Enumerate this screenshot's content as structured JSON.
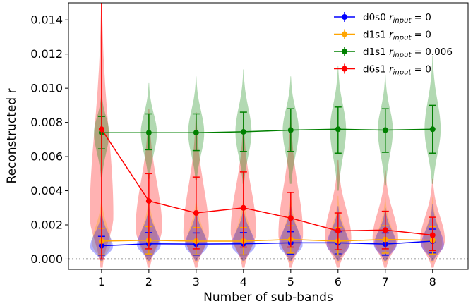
{
  "chart_data": {
    "type": "line",
    "xlabel": "Number of sub-bands",
    "ylabel": "Reconstructed r",
    "x": [
      1,
      2,
      3,
      4,
      5,
      6,
      7,
      8
    ],
    "xlim": [
      0.3,
      8.75
    ],
    "ylim": [
      -0.0006,
      0.015
    ],
    "yticks": [
      "0.000",
      "0.002",
      "0.004",
      "0.006",
      "0.008",
      "0.010",
      "0.012",
      "0.014"
    ],
    "ytick_values": [
      0,
      0.002,
      0.004,
      0.006,
      0.008,
      0.01,
      0.012,
      0.014
    ],
    "reference_line": 0,
    "legend_position": "top-right",
    "series": [
      {
        "name": "d0s0",
        "r_input": "0",
        "color": "#0000ff",
        "values": [
          0.00078,
          0.0009,
          0.00088,
          0.0009,
          0.00095,
          0.00095,
          0.00088,
          0.00105
        ],
        "err_low": [
          0.00055,
          0.00065,
          0.00065,
          0.00065,
          0.00065,
          0.00065,
          0.00065,
          0.0007
        ],
        "err_high": [
          0.00055,
          0.00065,
          0.00065,
          0.00065,
          0.00065,
          0.00065,
          0.00065,
          0.0007
        ]
      },
      {
        "name": "d1s1",
        "r_input": "0",
        "color": "#ffa500",
        "values": [
          0.00105,
          0.0011,
          0.00105,
          0.00105,
          0.00115,
          0.00105,
          0.00115,
          0.0011
        ],
        "err_low": [
          0.0008,
          0.0008,
          0.0008,
          0.0008,
          0.0008,
          0.0008,
          0.0008,
          0.0008
        ],
        "err_high": [
          0.00075,
          0.0008,
          0.0008,
          0.0008,
          0.0008,
          0.0008,
          0.0008,
          0.0008
        ]
      },
      {
        "name": "d1s1",
        "r_input": "0.006",
        "color": "#008000",
        "values": [
          0.0074,
          0.0074,
          0.0074,
          0.00745,
          0.00755,
          0.0076,
          0.00755,
          0.0076
        ],
        "err_low": [
          0.00095,
          0.001,
          0.00105,
          0.00115,
          0.00125,
          0.0014,
          0.0013,
          0.0014
        ],
        "err_high": [
          0.00095,
          0.0011,
          0.0011,
          0.00115,
          0.00125,
          0.0013,
          0.00125,
          0.0014
        ]
      },
      {
        "name": "d6s1",
        "r_input": "0",
        "color": "#ff0000",
        "values": [
          0.0076,
          0.0034,
          0.0027,
          0.003,
          0.0024,
          0.00165,
          0.0017,
          0.0014
        ],
        "err_low": [
          0.0076,
          0.0028,
          0.0021,
          0.0023,
          0.0017,
          0.0011,
          0.0011,
          0.0009
        ],
        "err_high": [
          0.0077,
          0.0016,
          0.0021,
          0.0021,
          0.0015,
          0.00105,
          0.0011,
          0.00105
        ]
      }
    ],
    "violins": [
      {
        "color": "#ff0000",
        "alpha": 0.3,
        "center": [
          0.0025,
          0.0018,
          0.0015,
          0.0016,
          0.0014,
          0.0012,
          0.0012,
          0.0011
        ],
        "low": [
          -0.0005,
          -0.0005,
          -0.0005,
          -0.0005,
          -0.0005,
          -0.0005,
          -0.0005,
          -0.0005
        ],
        "high": [
          0.0155,
          0.0088,
          0.0086,
          0.0082,
          0.0085,
          0.0058,
          0.0052,
          0.0047
        ],
        "width": [
          0.25,
          0.28,
          0.27,
          0.27,
          0.26,
          0.28,
          0.27,
          0.26
        ]
      },
      {
        "color": "#ffa500",
        "alpha": 0.3,
        "center": [
          0.0009,
          0.0009,
          0.0009,
          0.0009,
          0.0009,
          0.0009,
          0.0009,
          0.0009
        ],
        "low": [
          -0.0002,
          -0.0002,
          -0.0002,
          -0.0002,
          -0.0002,
          -0.0002,
          -0.0002,
          -0.0002
        ],
        "high": [
          0.0036,
          0.0037,
          0.0036,
          0.0037,
          0.0037,
          0.0037,
          0.0036,
          0.0036
        ],
        "width": [
          0.2,
          0.2,
          0.2,
          0.2,
          0.2,
          0.2,
          0.2,
          0.2
        ]
      },
      {
        "color": "#0000ff",
        "alpha": 0.3,
        "center": [
          0.0007,
          0.0008,
          0.0008,
          0.0008,
          0.0008,
          0.0008,
          0.0008,
          0.0008
        ],
        "low": [
          -0.0001,
          -0.0001,
          -0.0001,
          -0.0001,
          -0.0001,
          -0.0001,
          -0.0001,
          -0.0001
        ],
        "high": [
          0.0028,
          0.0031,
          0.0029,
          0.003,
          0.0032,
          0.0031,
          0.003,
          0.0032
        ],
        "width": [
          0.24,
          0.25,
          0.24,
          0.25,
          0.25,
          0.24,
          0.24,
          0.24
        ]
      },
      {
        "color": "#008000",
        "alpha": 0.3,
        "center": [
          0.0074,
          0.0074,
          0.0074,
          0.00745,
          0.00755,
          0.0076,
          0.00755,
          0.0076
        ],
        "low": [
          0.0048,
          0.0047,
          0.0046,
          0.0044,
          0.0044,
          0.004,
          0.0043,
          0.0044
        ],
        "high": [
          0.0098,
          0.0103,
          0.0107,
          0.0111,
          0.0107,
          0.0113,
          0.0108,
          0.0119
        ],
        "width": [
          0.16,
          0.17,
          0.17,
          0.17,
          0.17,
          0.17,
          0.16,
          0.17
        ]
      }
    ]
  }
}
